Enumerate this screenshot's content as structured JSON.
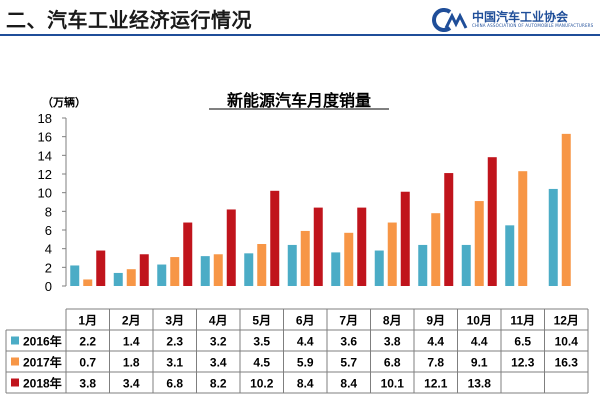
{
  "header": {
    "title": "二、汽车工业经济运行情况",
    "logo_text": "中国汽车工业协会",
    "logo_subtext": "CHINA ASSOCIATION OF AUTOMOBILE MANUFACTURERS"
  },
  "colors": {
    "s2016": "#4bacc6",
    "s2017": "#f79646",
    "s2018": "#c0141c",
    "axis": "#7f7f7f",
    "brand": "#1f4e99"
  },
  "chart_data": {
    "type": "bar",
    "title": "新能源汽车月度销量",
    "ylabel": "（万辆）",
    "ylim": [
      0,
      18
    ],
    "yticks": [
      0,
      2,
      4,
      6,
      8,
      10,
      12,
      14,
      16,
      18
    ],
    "categories": [
      "1月",
      "2月",
      "3月",
      "4月",
      "5月",
      "6月",
      "7月",
      "8月",
      "9月",
      "10月",
      "11月",
      "12月"
    ],
    "legend": "data-table",
    "series": [
      {
        "name": "2016年",
        "values": [
          2.2,
          1.4,
          2.3,
          3.2,
          3.5,
          4.4,
          3.6,
          3.8,
          4.4,
          4.4,
          6.5,
          10.4
        ]
      },
      {
        "name": "2017年",
        "values": [
          0.7,
          1.8,
          3.1,
          3.4,
          4.5,
          5.9,
          5.7,
          6.8,
          7.8,
          9.1,
          12.3,
          16.3
        ]
      },
      {
        "name": "2018年",
        "values": [
          3.8,
          3.4,
          6.8,
          8.2,
          10.2,
          8.4,
          8.4,
          10.1,
          12.1,
          13.8,
          null,
          null
        ]
      }
    ]
  }
}
